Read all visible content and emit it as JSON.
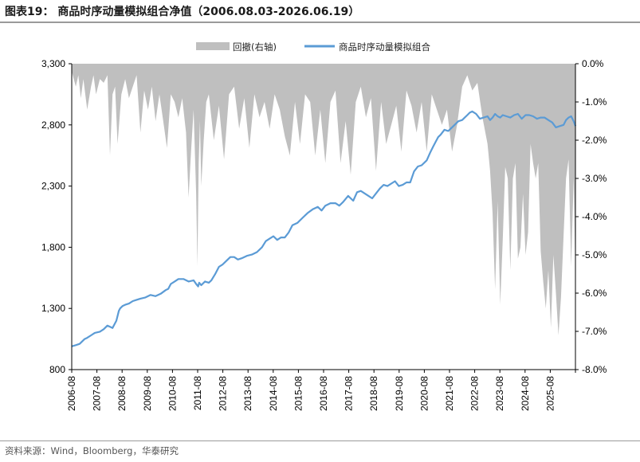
{
  "header": {
    "title": "图表19： 商品时序动量模拟组合净值（2006.08.03-2026.06.19）"
  },
  "footer": {
    "source": "资料来源：Wind，Bloomberg，华泰研究"
  },
  "chart_data": {
    "type": "line",
    "title": "商品时序动量模拟组合净值（2006.08.03-2026.06.19）",
    "legend_position": "top-center",
    "grid": false,
    "x_tick_labels": [
      "2006-08",
      "2007-08",
      "2008-08",
      "2009-08",
      "2010-08",
      "2011-08",
      "2012-08",
      "2013-08",
      "2014-08",
      "2015-08",
      "2016-08",
      "2017-08",
      "2018-08",
      "2019-08",
      "2020-08",
      "2021-08",
      "2022-08",
      "2023-08",
      "2024-08",
      "2025-08"
    ],
    "y_left": {
      "ylim": [
        800,
        3300
      ],
      "ticks": [
        800,
        1300,
        1800,
        2300,
        2800,
        3300
      ],
      "tick_labels": [
        "800",
        "1,300",
        "1,800",
        "2,300",
        "2,800",
        "3,300"
      ]
    },
    "y_right": {
      "ylim": [
        -8.0,
        0.0
      ],
      "ticks": [
        0,
        -1,
        -2,
        -3,
        -4,
        -5,
        -6,
        -7,
        -8
      ],
      "tick_labels": [
        "0.0%",
        "-1.0%",
        "-2.0%",
        "-3.0%",
        "-4.0%",
        "-5.0%",
        "-6.0%",
        "-7.0%",
        "-8.0%"
      ]
    },
    "series": [
      {
        "name": "回撤(右轴)",
        "type": "area",
        "axis": "right",
        "color": "#bfbfbf",
        "x": [
          2006.59,
          2006.75,
          2006.85,
          2006.95,
          2007.05,
          2007.2,
          2007.35,
          2007.45,
          2007.55,
          2007.7,
          2007.85,
          2008.0,
          2008.1,
          2008.2,
          2008.3,
          2008.4,
          2008.55,
          2008.7,
          2008.85,
          2009.0,
          2009.15,
          2009.3,
          2009.45,
          2009.6,
          2009.75,
          2009.9,
          2010.05,
          2010.2,
          2010.35,
          2010.5,
          2010.65,
          2010.8,
          2010.95,
          2011.1,
          2011.2,
          2011.3,
          2011.4,
          2011.5,
          2011.55,
          2011.6,
          2011.65,
          2011.7,
          2011.8,
          2011.9,
          2012.0,
          2012.2,
          2012.4,
          2012.6,
          2012.8,
          2013.0,
          2013.2,
          2013.4,
          2013.6,
          2013.8,
          2014.0,
          2014.2,
          2014.4,
          2014.6,
          2014.8,
          2015.0,
          2015.2,
          2015.4,
          2015.6,
          2015.8,
          2016.0,
          2016.2,
          2016.4,
          2016.6,
          2016.8,
          2017.0,
          2017.2,
          2017.4,
          2017.6,
          2017.8,
          2018.0,
          2018.2,
          2018.4,
          2018.6,
          2018.8,
          2019.0,
          2019.2,
          2019.4,
          2019.6,
          2019.8,
          2020.0,
          2020.2,
          2020.4,
          2020.6,
          2020.8,
          2021.0,
          2021.2,
          2021.4,
          2021.6,
          2021.8,
          2022.0,
          2022.2,
          2022.4,
          2022.6,
          2022.8,
          2023.0,
          2023.1,
          2023.2,
          2023.3,
          2023.4,
          2023.5,
          2023.6,
          2023.7,
          2023.8,
          2023.9,
          2024.0,
          2024.1,
          2024.2,
          2024.3,
          2024.4,
          2024.5,
          2024.6,
          2024.7,
          2024.8,
          2024.9,
          2025.0,
          2025.1,
          2025.2,
          2025.3,
          2025.4,
          2025.5,
          2025.6,
          2025.7,
          2025.8,
          2025.9,
          2026.0,
          2026.1,
          2026.2,
          2026.3,
          2026.4,
          2026.47
        ],
        "values": [
          -0.2,
          -0.6,
          -0.3,
          -0.9,
          -0.4,
          -1.2,
          -0.6,
          -0.3,
          -0.8,
          -0.4,
          -0.5,
          -0.3,
          -2.4,
          -0.8,
          -0.6,
          -2.1,
          -0.8,
          -0.4,
          -0.9,
          -0.6,
          -0.3,
          -1.8,
          -0.7,
          -1.2,
          -0.6,
          -1.5,
          -0.8,
          -1.5,
          -2.2,
          -0.8,
          -1.0,
          -1.4,
          -0.9,
          -1.8,
          -3.5,
          -2.3,
          -1.2,
          -3.4,
          -5.3,
          -2.6,
          -1.5,
          -3.2,
          -2.0,
          -1.0,
          -0.8,
          -2.0,
          -1.1,
          -2.5,
          -0.8,
          -0.6,
          -1.7,
          -0.9,
          -2.2,
          -0.8,
          -1.4,
          -1.0,
          -1.7,
          -0.8,
          -1.2,
          -1.9,
          -2.4,
          -1.0,
          -2.1,
          -0.8,
          -1.0,
          -2.4,
          -1.2,
          -2.6,
          -1.0,
          -0.7,
          -2.6,
          -1.5,
          -2.9,
          -1.0,
          -0.6,
          -1.4,
          -0.9,
          -2.8,
          -1.0,
          -2.1,
          -1.6,
          -1.1,
          -2.3,
          -0.7,
          -1.1,
          -1.8,
          -1.0,
          -2.3,
          -0.8,
          -1.2,
          -1.6,
          -1.2,
          -2.3,
          -1.6,
          -0.6,
          -0.3,
          -0.7,
          -0.5,
          -1.4,
          -2.1,
          -2.8,
          -3.9,
          -5.9,
          -3.6,
          -6.3,
          -4.6,
          -2.7,
          -3.0,
          -5.4,
          -3.0,
          -2.6,
          -5.1,
          -4.8,
          -3.4,
          -5.0,
          -4.4,
          -2.1,
          -2.6,
          -3.0,
          -2.6,
          -4.9,
          -5.7,
          -6.4,
          -5.4,
          -6.9,
          -5.0,
          -6.0,
          -7.1,
          -6.1,
          -4.5,
          -3.0,
          -2.5,
          -5.3,
          -3.0,
          -5.5
        ]
      },
      {
        "name": "商品时序动量模拟组合",
        "type": "line",
        "axis": "left",
        "color": "#5b9bd5",
        "x": [
          2006.59,
          2006.75,
          2006.9,
          2007.0,
          2007.1,
          2007.2,
          2007.35,
          2007.5,
          2007.7,
          2007.85,
          2008.0,
          2008.2,
          2008.35,
          2008.45,
          2008.5,
          2008.6,
          2008.7,
          2008.85,
          2009.0,
          2009.15,
          2009.3,
          2009.5,
          2009.7,
          2009.9,
          2010.1,
          2010.3,
          2010.4,
          2010.5,
          2010.65,
          2010.8,
          2011.0,
          2011.2,
          2011.4,
          2011.5,
          2011.58,
          2011.62,
          2011.7,
          2011.85,
          2012.0,
          2012.1,
          2012.25,
          2012.4,
          2012.55,
          2012.7,
          2012.85,
          2013.0,
          2013.15,
          2013.3,
          2013.5,
          2013.7,
          2013.9,
          2014.1,
          2014.25,
          2014.4,
          2014.55,
          2014.7,
          2014.85,
          2015.0,
          2015.15,
          2015.3,
          2015.5,
          2015.7,
          2015.9,
          2016.1,
          2016.3,
          2016.45,
          2016.6,
          2016.8,
          2017.0,
          2017.15,
          2017.3,
          2017.5,
          2017.7,
          2017.85,
          2018.0,
          2018.15,
          2018.3,
          2018.45,
          2018.6,
          2018.75,
          2018.9,
          2019.05,
          2019.2,
          2019.35,
          2019.5,
          2019.65,
          2019.8,
          2019.95,
          2020.1,
          2020.25,
          2020.4,
          2020.6,
          2020.75,
          2020.85,
          2020.95,
          2021.05,
          2021.15,
          2021.3,
          2021.45,
          2021.55,
          2021.7,
          2021.85,
          2022.0,
          2022.1,
          2022.2,
          2022.3,
          2022.4,
          2022.55,
          2022.7,
          2022.85,
          2023.0,
          2023.1,
          2023.2,
          2023.3,
          2023.4,
          2023.5,
          2023.6,
          2023.75,
          2023.9,
          2024.05,
          2024.2,
          2024.35,
          2024.5,
          2024.65,
          2024.8,
          2024.95,
          2025.1,
          2025.25,
          2025.4,
          2025.55,
          2025.7,
          2025.85,
          2026.0,
          2026.1,
          2026.2,
          2026.3,
          2026.4,
          2026.47
        ],
        "values": [
          990,
          1000,
          1010,
          1030,
          1050,
          1060,
          1080,
          1100,
          1110,
          1130,
          1160,
          1140,
          1200,
          1280,
          1300,
          1320,
          1330,
          1340,
          1360,
          1370,
          1380,
          1390,
          1410,
          1400,
          1420,
          1450,
          1460,
          1500,
          1520,
          1540,
          1540,
          1520,
          1530,
          1500,
          1480,
          1510,
          1490,
          1520,
          1510,
          1530,
          1580,
          1640,
          1660,
          1690,
          1720,
          1720,
          1700,
          1710,
          1730,
          1740,
          1760,
          1800,
          1850,
          1870,
          1890,
          1860,
          1880,
          1880,
          1920,
          1980,
          2000,
          2040,
          2080,
          2110,
          2130,
          2100,
          2140,
          2160,
          2160,
          2140,
          2170,
          2220,
          2180,
          2250,
          2260,
          2240,
          2220,
          2200,
          2240,
          2280,
          2310,
          2300,
          2320,
          2340,
          2300,
          2310,
          2330,
          2330,
          2420,
          2460,
          2470,
          2510,
          2580,
          2620,
          2660,
          2700,
          2720,
          2760,
          2750,
          2770,
          2800,
          2830,
          2840,
          2860,
          2880,
          2900,
          2910,
          2890,
          2850,
          2860,
          2870,
          2840,
          2860,
          2890,
          2870,
          2860,
          2880,
          2870,
          2860,
          2880,
          2890,
          2850,
          2880,
          2880,
          2870,
          2850,
          2860,
          2860,
          2840,
          2820,
          2780,
          2790,
          2800,
          2840,
          2860,
          2870,
          2830,
          2790
        ]
      }
    ]
  }
}
